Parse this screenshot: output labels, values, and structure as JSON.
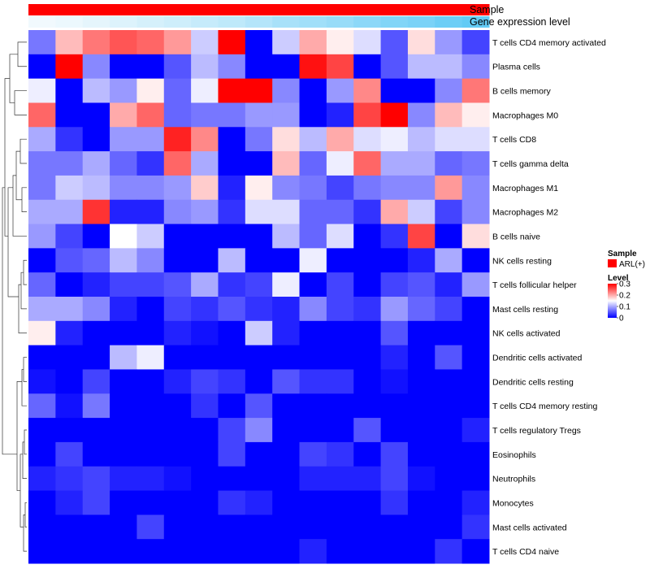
{
  "chart_data": {
    "type": "heatmap",
    "title": "",
    "annotations": {
      "sample_label": "Sample",
      "gene_label": "Gene expression level",
      "sample_color": "#FF0000",
      "gene_gradient": [
        0.02,
        0.05,
        0.1,
        0.15,
        0.2,
        0.25,
        0.3,
        0.35,
        0.42,
        0.5,
        0.55,
        0.6,
        0.68,
        0.75,
        0.8,
        0.88,
        0.95,
        1.0
      ],
      "gene_colors": {
        "low": "#F4FAFD",
        "high": "#5BC8F5"
      }
    },
    "rows": [
      "T cells CD4 memory activated",
      "Plasma cells",
      "B cells memory",
      "Macrophages M0",
      "T cells CD8",
      "T cells gamma delta",
      "Macrophages M1",
      "Macrophages M2",
      "B cells naive",
      "NK cells resting",
      "T cells follicular helper",
      "Mast cells resting",
      "NK cells activated",
      "Dendritic cells activated",
      "Dendritic cells resting",
      "T cells CD4 memory resting",
      "T cells regulatory  Tregs",
      "Eosinophils",
      "Neutrophils",
      "Monocytes",
      "Mast cells activated",
      "T cells CD4 naive"
    ],
    "values": [
      [
        0.07,
        0.19,
        0.23,
        0.25,
        0.24,
        0.21,
        0.12,
        0.3,
        0.0,
        0.12,
        0.2,
        0.16,
        0.13,
        0.05,
        0.17,
        0.09,
        0.04
      ],
      [
        0.0,
        0.3,
        0.08,
        0.0,
        0.0,
        0.05,
        0.11,
        0.08,
        0.0,
        0.0,
        0.29,
        0.26,
        0.0,
        0.05,
        0.11,
        0.11,
        0.08
      ],
      [
        0.14,
        0.0,
        0.11,
        0.09,
        0.16,
        0.06,
        0.14,
        0.3,
        0.3,
        0.08,
        0.0,
        0.09,
        0.22,
        0.0,
        0.0,
        0.08,
        0.23
      ],
      [
        0.24,
        0.0,
        0.0,
        0.2,
        0.24,
        0.06,
        0.07,
        0.07,
        0.09,
        0.09,
        0.0,
        0.02,
        0.26,
        0.3,
        0.08,
        0.19,
        0.16
      ],
      [
        0.1,
        0.03,
        0.0,
        0.09,
        0.09,
        0.28,
        0.22,
        0.0,
        0.07,
        0.17,
        0.11,
        0.2,
        0.13,
        0.14,
        0.11,
        0.13,
        0.13
      ],
      [
        0.07,
        0.07,
        0.1,
        0.06,
        0.03,
        0.24,
        0.1,
        0.0,
        0.0,
        0.19,
        0.06,
        0.14,
        0.24,
        0.1,
        0.1,
        0.06,
        0.07
      ],
      [
        0.07,
        0.12,
        0.11,
        0.08,
        0.08,
        0.09,
        0.18,
        0.02,
        0.16,
        0.08,
        0.07,
        0.04,
        0.07,
        0.08,
        0.08,
        0.21,
        0.08
      ],
      [
        0.1,
        0.1,
        0.27,
        0.02,
        0.02,
        0.08,
        0.09,
        0.03,
        0.13,
        0.13,
        0.06,
        0.06,
        0.03,
        0.2,
        0.12,
        0.04,
        0.08
      ],
      [
        0.09,
        0.04,
        0.0,
        0.15,
        0.12,
        0.0,
        0.0,
        0.0,
        0.0,
        0.11,
        0.06,
        0.13,
        0.0,
        0.03,
        0.26,
        0.0,
        0.17
      ],
      [
        0.0,
        0.05,
        0.06,
        0.11,
        0.08,
        0.0,
        0.0,
        0.11,
        0.0,
        0.0,
        0.14,
        0.0,
        0.0,
        0.0,
        0.02,
        0.1,
        0.0
      ],
      [
        0.06,
        0.0,
        0.02,
        0.04,
        0.04,
        0.05,
        0.1,
        0.03,
        0.04,
        0.14,
        0.0,
        0.04,
        0.0,
        0.04,
        0.05,
        0.02,
        0.09
      ],
      [
        0.1,
        0.1,
        0.08,
        0.02,
        0.0,
        0.04,
        0.03,
        0.05,
        0.03,
        0.02,
        0.08,
        0.04,
        0.03,
        0.09,
        0.06,
        0.04,
        0.0
      ],
      [
        0.16,
        0.02,
        0.0,
        0.0,
        0.0,
        0.02,
        0.01,
        0.0,
        0.12,
        0.02,
        0.0,
        0.0,
        0.0,
        0.05,
        0.0,
        0.0,
        0.0
      ],
      [
        0.0,
        0.0,
        0.0,
        0.11,
        0.14,
        0.0,
        0.0,
        0.0,
        0.0,
        0.0,
        0.0,
        0.0,
        0.0,
        0.02,
        0.0,
        0.05,
        0.0
      ],
      [
        0.01,
        0.0,
        0.04,
        0.0,
        0.0,
        0.02,
        0.04,
        0.03,
        0.0,
        0.05,
        0.03,
        0.03,
        0.0,
        0.01,
        0.0,
        0.0,
        0.0
      ],
      [
        0.06,
        0.01,
        0.07,
        0.0,
        0.0,
        0.0,
        0.03,
        0.0,
        0.05,
        0.0,
        0.0,
        0.0,
        0.0,
        0.0,
        0.0,
        0.0,
        0.0
      ],
      [
        0.0,
        0.0,
        0.0,
        0.0,
        0.0,
        0.0,
        0.0,
        0.04,
        0.08,
        0.0,
        0.0,
        0.0,
        0.05,
        0.0,
        0.0,
        0.0,
        0.02
      ],
      [
        0.0,
        0.04,
        0.0,
        0.0,
        0.0,
        0.0,
        0.0,
        0.04,
        0.0,
        0.0,
        0.04,
        0.03,
        0.0,
        0.04,
        0.0,
        0.0,
        0.0
      ],
      [
        0.02,
        0.03,
        0.04,
        0.02,
        0.02,
        0.01,
        0.0,
        0.0,
        0.0,
        0.0,
        0.02,
        0.02,
        0.02,
        0.04,
        0.01,
        0.0,
        0.0
      ],
      [
        0.0,
        0.02,
        0.04,
        0.0,
        0.0,
        0.0,
        0.0,
        0.03,
        0.02,
        0.0,
        0.0,
        0.0,
        0.0,
        0.03,
        0.0,
        0.0,
        0.02
      ],
      [
        0.0,
        0.0,
        0.0,
        0.0,
        0.04,
        0.0,
        0.0,
        0.0,
        0.0,
        0.0,
        0.0,
        0.0,
        0.0,
        0.0,
        0.0,
        0.0,
        0.03
      ],
      [
        0.0,
        0.0,
        0.0,
        0.0,
        0.0,
        0.0,
        0.0,
        0.0,
        0.0,
        0.0,
        0.02,
        0.0,
        0.0,
        0.0,
        0.0,
        0.03,
        0.0
      ]
    ],
    "color_scale": {
      "min": 0,
      "mid": 0.15,
      "max": 0.3,
      "low": "#0000FF",
      "midColor": "#FFFFFF",
      "high": "#FF0000"
    },
    "legend": {
      "sample_title": "Sample",
      "sample_entry": "ARL(+)",
      "level_title": "Level",
      "ticks": [
        "0.3",
        "0.2",
        "0.1",
        "0"
      ],
      "position": "right"
    }
  }
}
